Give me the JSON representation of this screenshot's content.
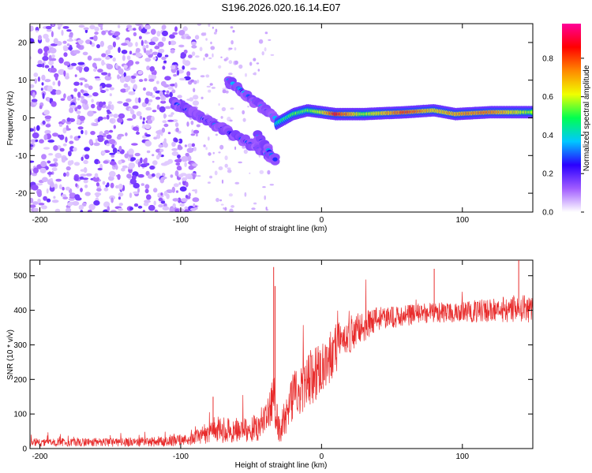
{
  "title": "S196.2026.020.16.14.E07",
  "chart_data": [
    {
      "type": "heatmap",
      "xlabel": "Height of straight line (km)",
      "ylabel": "Frequency (Hz)",
      "xlim": [
        -207,
        150
      ],
      "ylim": [
        -25,
        25
      ],
      "xticks": [
        -200,
        -100,
        0,
        100
      ],
      "yticks": [
        -20,
        -10,
        0,
        10,
        20
      ],
      "colorbar": {
        "label": "Normalized spectral amplitude",
        "range": [
          0,
          0.98
        ],
        "ticks": [
          0.0,
          0.2,
          0.4,
          0.6,
          0.8
        ],
        "tick_labels": [
          "0.0",
          "0.2",
          "0.4",
          "0.6",
          "0.8"
        ],
        "colors": [
          "#ffffff",
          "#a15cff",
          "#2a00ff",
          "#00c8ff",
          "#00ff50",
          "#f0ff00",
          "#ff8800",
          "#ff0000",
          "#ff0099"
        ]
      },
      "signal": {
        "noise_region_x": [
          -207,
          -97
        ],
        "upper_branch": {
          "x": [
            -66,
            -33
          ],
          "freq": [
            10,
            0
          ]
        },
        "lower_branch": {
          "x": [
            -105,
            -55,
            -33
          ],
          "freq": [
            4,
            -6,
            -11
          ]
        },
        "tail_branch": {
          "x": [
            -45,
            -33
          ],
          "freq": [
            -5,
            -11
          ]
        },
        "continuous_band": [
          {
            "x": -32,
            "freq": -1.5,
            "amp": 0.45
          },
          {
            "x": -20,
            "freq": 1.0,
            "amp": 0.55
          },
          {
            "x": -10,
            "freq": 2.0,
            "amp": 0.55
          },
          {
            "x": 0,
            "freq": 1.5,
            "amp": 0.65
          },
          {
            "x": 10,
            "freq": 1.0,
            "amp": 0.9
          },
          {
            "x": 30,
            "freq": 1.0,
            "amp": 0.6
          },
          {
            "x": 60,
            "freq": 1.5,
            "amp": 0.85
          },
          {
            "x": 80,
            "freq": 2.0,
            "amp": 0.7
          },
          {
            "x": 95,
            "freq": 1.0,
            "amp": 0.75
          },
          {
            "x": 120,
            "freq": 1.5,
            "amp": 0.8
          },
          {
            "x": 150,
            "freq": 1.5,
            "amp": 0.6
          }
        ]
      }
    },
    {
      "type": "line",
      "xlabel": "Height of straight line (km)",
      "ylabel": "SNR (10 * v/v)",
      "xlim": [
        -207,
        150
      ],
      "ylim": [
        0,
        545
      ],
      "xticks": [
        -200,
        -100,
        0,
        100
      ],
      "yticks": [
        0,
        100,
        200,
        300,
        400,
        500
      ],
      "series": [
        {
          "name": "SNR",
          "color": "#e82c2c",
          "x": [
            -207,
            -150,
            -110,
            -90,
            -75,
            -60,
            -45,
            -36,
            -34,
            -30,
            -20,
            -10,
            0,
            10,
            20,
            30,
            40,
            60,
            80,
            100,
            120,
            140,
            150
          ],
          "median": [
            18,
            18,
            20,
            30,
            55,
            50,
            60,
            120,
            130,
            50,
            150,
            200,
            230,
            290,
            330,
            350,
            375,
            385,
            395,
            395,
            400,
            405,
            405
          ],
          "noise": [
            12,
            12,
            14,
            20,
            40,
            35,
            40,
            60,
            90,
            40,
            70,
            80,
            80,
            70,
            55,
            45,
            35,
            30,
            30,
            30,
            35,
            40,
            40
          ],
          "peaks": [
            {
              "x": -77,
              "value": 150
            },
            {
              "x": -34,
              "value": 525
            },
            {
              "x": -33,
              "value": 470
            },
            {
              "x": 80,
              "value": 520
            },
            {
              "x": 140,
              "value": 545
            }
          ]
        }
      ]
    }
  ]
}
